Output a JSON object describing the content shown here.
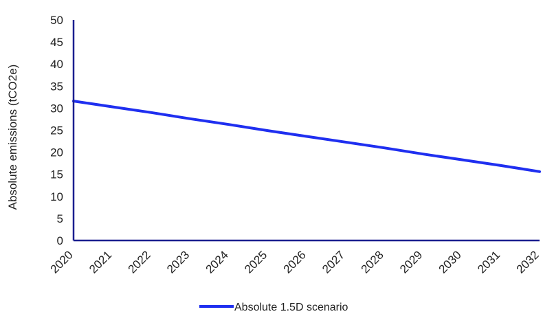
{
  "chart_data": {
    "type": "line",
    "title": "",
    "xlabel": "",
    "ylabel": "Absolute emissions (tCO2e)",
    "x": [
      "2020",
      "2021",
      "2022",
      "2023",
      "2024",
      "2025",
      "2026",
      "2027",
      "2028",
      "2029",
      "2030",
      "2031",
      "2032"
    ],
    "ylim": [
      0,
      50
    ],
    "yticks": [
      0,
      5,
      10,
      15,
      20,
      25,
      30,
      35,
      40,
      45,
      50
    ],
    "grid": false,
    "legend_position": "bottom",
    "series": [
      {
        "name": "Absolute 1.5D scenario",
        "color": "#1f2ff0",
        "values": [
          31.6,
          30.3,
          29.0,
          27.6,
          26.3,
          24.9,
          23.6,
          22.3,
          21.0,
          19.6,
          18.3,
          17.0,
          15.6
        ]
      }
    ]
  }
}
